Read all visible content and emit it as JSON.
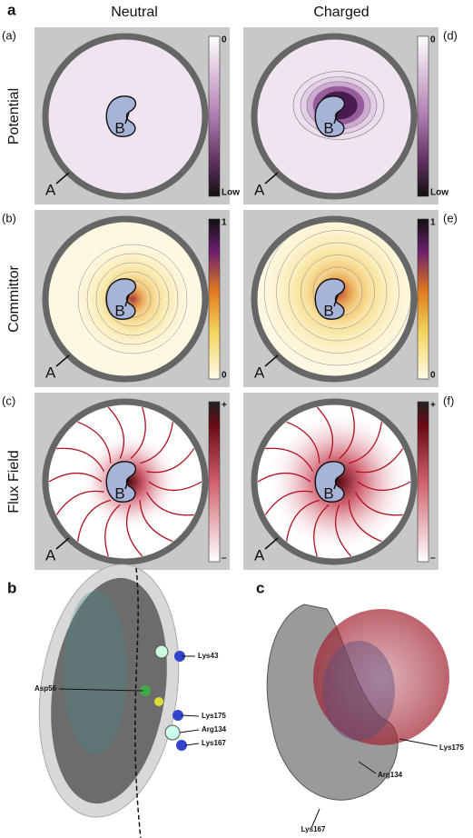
{
  "figure": {
    "label": "a",
    "columns": [
      "Neutral",
      "Charged"
    ],
    "rows": [
      {
        "label": "Potential",
        "tags": [
          "(a)",
          "(d)"
        ],
        "colorbar": {
          "top": "0",
          "bottom": "Low"
        }
      },
      {
        "label": "Committor",
        "tags": [
          "(b)",
          "(e)"
        ],
        "colorbar": {
          "top": "1",
          "bottom": "0"
        }
      },
      {
        "label": "Flux Field",
        "tags": [
          "(c)",
          "(f)"
        ],
        "colorbar": {
          "top": "+",
          "bottom": "–"
        }
      }
    ],
    "site_a": "A",
    "site_b": "B"
  },
  "panel_b": {
    "label": "b",
    "residues": [
      "Lys43",
      "Asp56",
      "Lys175",
      "Arg134",
      "Lys167"
    ]
  },
  "panel_c": {
    "label": "c",
    "residues": [
      "Lys175",
      "Arg134",
      "Lys167"
    ]
  }
}
